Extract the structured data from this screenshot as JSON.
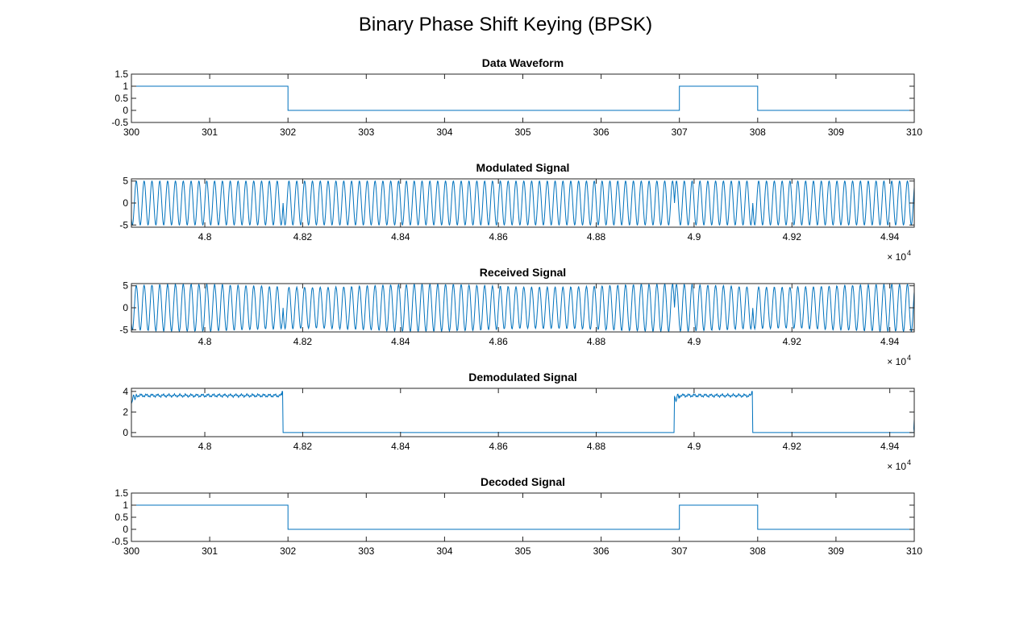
{
  "figure": {
    "title": "Binary Phase Shift Keying (BPSK)",
    "line_color": "#0072bd"
  },
  "chart_data": [
    {
      "type": "line",
      "title": "Data Waveform",
      "xlabel": "",
      "ylabel": "",
      "xlim": [
        300,
        310
      ],
      "ylim": [
        -0.5,
        1.5
      ],
      "xticks": [
        300,
        301,
        302,
        303,
        304,
        305,
        306,
        307,
        308,
        309,
        310
      ],
      "xtick_labels": [
        "300",
        "301",
        "302",
        "303",
        "304",
        "305",
        "306",
        "307",
        "308",
        "309",
        "310"
      ],
      "yticks": [
        -0.5,
        0,
        0.5,
        1,
        1.5
      ],
      "ytick_labels": [
        "-0.5",
        "0",
        "0.5",
        "1",
        "1.5"
      ],
      "x_exponent": "",
      "grid": false,
      "series": [
        {
          "kind": "step",
          "segments": [
            [
              300,
              302,
              1
            ],
            [
              302,
              307,
              0
            ],
            [
              307,
              308,
              1
            ],
            [
              308,
              310,
              0
            ]
          ]
        }
      ]
    },
    {
      "type": "line",
      "title": "Modulated Signal",
      "xlabel": "",
      "ylabel": "",
      "xlim": [
        47850,
        49450
      ],
      "ylim": [
        -5.5,
        5.5
      ],
      "xticks": [
        48000,
        48200,
        48400,
        48600,
        48800,
        49000,
        49200,
        49400
      ],
      "xtick_labels": [
        "4.8",
        "4.82",
        "4.84",
        "4.86",
        "4.88",
        "4.9",
        "4.92",
        "4.94"
      ],
      "yticks": [
        -5,
        0,
        5
      ],
      "ytick_labels": [
        "-5",
        "0",
        "5"
      ],
      "x_exponent": "4",
      "grid": false,
      "series": [
        {
          "kind": "bpsk",
          "amplitude": 5,
          "period": 16,
          "bit_edges": [
            47850,
            48160,
            48960,
            49120,
            49450
          ],
          "bits": [
            1,
            0,
            1,
            0
          ],
          "noise": 0
        }
      ]
    },
    {
      "type": "line",
      "title": "Received Signal",
      "xlabel": "",
      "ylabel": "",
      "xlim": [
        47850,
        49450
      ],
      "ylim": [
        -5.5,
        5.5
      ],
      "xticks": [
        48000,
        48200,
        48400,
        48600,
        48800,
        49000,
        49200,
        49400
      ],
      "xtick_labels": [
        "4.8",
        "4.82",
        "4.84",
        "4.86",
        "4.88",
        "4.9",
        "4.92",
        "4.94"
      ],
      "yticks": [
        -5,
        0,
        5
      ],
      "ytick_labels": [
        "-5",
        "0",
        "5"
      ],
      "x_exponent": "4",
      "grid": false,
      "series": [
        {
          "kind": "bpsk",
          "amplitude": 5,
          "period": 16,
          "bit_edges": [
            47850,
            48160,
            48960,
            49120,
            49450
          ],
          "bits": [
            1,
            0,
            1,
            0
          ],
          "noise": 0.35
        }
      ]
    },
    {
      "type": "line",
      "title": "Demodulated Signal",
      "xlabel": "",
      "ylabel": "",
      "xlim": [
        47850,
        49450
      ],
      "ylim": [
        -0.4,
        4.3
      ],
      "xticks": [
        48000,
        48200,
        48400,
        48600,
        48800,
        49000,
        49200,
        49400
      ],
      "xtick_labels": [
        "4.8",
        "4.82",
        "4.84",
        "4.86",
        "4.88",
        "4.9",
        "4.92",
        "4.94"
      ],
      "yticks": [
        0,
        2,
        4
      ],
      "ytick_labels": [
        "0",
        "2",
        "4"
      ],
      "x_exponent": "4",
      "grid": false,
      "series": [
        {
          "kind": "demod",
          "high": 3.6,
          "low": 0,
          "ripple": 0.2,
          "bit_edges": [
            47850,
            48160,
            48960,
            49120,
            49450
          ],
          "bits": [
            1,
            0,
            1,
            0
          ]
        }
      ]
    },
    {
      "type": "line",
      "title": "Decoded Signal",
      "xlabel": "",
      "ylabel": "",
      "xlim": [
        300,
        310
      ],
      "ylim": [
        -0.5,
        1.5
      ],
      "xticks": [
        300,
        301,
        302,
        303,
        304,
        305,
        306,
        307,
        308,
        309,
        310
      ],
      "xtick_labels": [
        "300",
        "301",
        "302",
        "303",
        "304",
        "305",
        "306",
        "307",
        "308",
        "309",
        "310"
      ],
      "yticks": [
        -0.5,
        0,
        0.5,
        1,
        1.5
      ],
      "ytick_labels": [
        "-0.5",
        "0",
        "0.5",
        "1",
        "1.5"
      ],
      "x_exponent": "",
      "grid": false,
      "series": [
        {
          "kind": "step",
          "segments": [
            [
              300,
              302,
              1
            ],
            [
              302,
              307,
              0
            ],
            [
              307,
              308,
              1
            ],
            [
              308,
              310,
              0
            ]
          ]
        }
      ]
    }
  ]
}
